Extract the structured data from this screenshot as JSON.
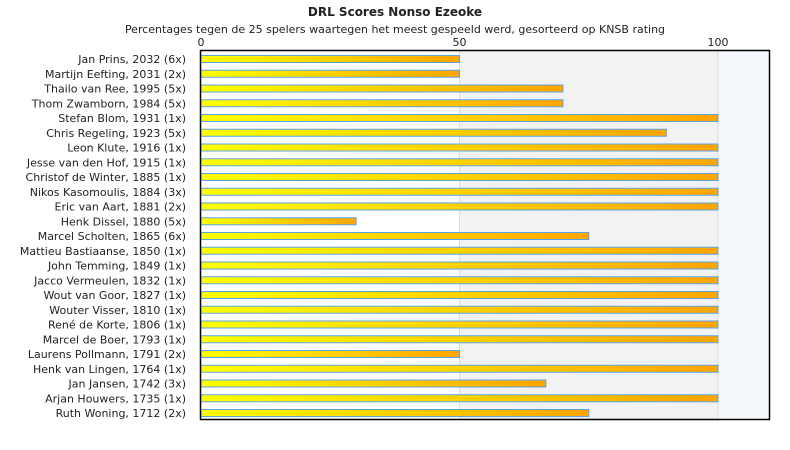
{
  "chart_data": {
    "type": "bar",
    "orientation": "horizontal",
    "title": "DRL Scores Nonso Ezeoke",
    "subtitle": "Percentages tegen de 25 spelers waartegen het meest gespeeld werd, gesorteerd op KNSB rating",
    "xlim": [
      0,
      110
    ],
    "xticks": [
      0,
      50,
      100
    ],
    "grid": true,
    "categories": [
      "Jan Prins, 2032 (6x)",
      "Martijn Eefting, 2031 (2x)",
      "Thailo van Ree, 1995 (5x)",
      "Thom Zwamborn, 1984 (5x)",
      "Stefan Blom, 1931 (1x)",
      "Chris Regeling, 1923 (5x)",
      "Leon Klute, 1916 (1x)",
      "Jesse van den Hof, 1915 (1x)",
      "Christof de Winter, 1885 (1x)",
      "Nikos Kasomoulis, 1884 (3x)",
      "Eric van Aart, 1881 (2x)",
      "Henk Dissel, 1880 (5x)",
      "Marcel Scholten, 1865 (6x)",
      "Mattieu Bastiaanse, 1850 (1x)",
      "John Temming, 1849 (1x)",
      "Jacco Vermeulen, 1832 (1x)",
      "Wout van Goor, 1827 (1x)",
      "Wouter Visser, 1810 (1x)",
      "René de Korte, 1806 (1x)",
      "Marcel de Boer, 1793 (1x)",
      "Laurens Pollmann, 1791 (2x)",
      "Henk van Lingen, 1764 (1x)",
      "Jan Jansen, 1742 (3x)",
      "Arjan Houwers, 1735 (1x)",
      "Ruth Woning, 1712 (2x)"
    ],
    "values": [
      50,
      50,
      70,
      70,
      100,
      90,
      100,
      100,
      100,
      100,
      100,
      30,
      75,
      100,
      100,
      100,
      100,
      100,
      100,
      100,
      50,
      100,
      66.7,
      100,
      75
    ],
    "colors": {
      "bar_start": "#ffff00",
      "bar_end": "#ffa500",
      "bar_border": "#5ca3e6",
      "band_mid": "#f2f2f2",
      "band_high": "#f5f9fd"
    }
  }
}
